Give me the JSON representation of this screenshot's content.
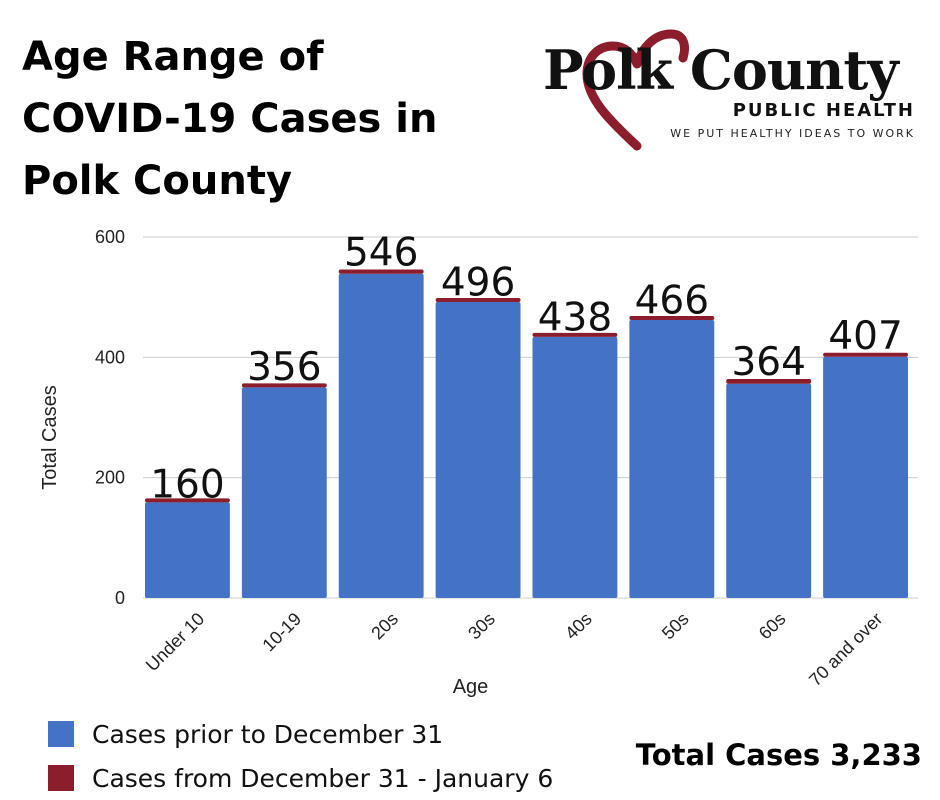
{
  "header": {
    "title_lines": [
      "Age Range of",
      "COVID-19 Cases in",
      "Polk County"
    ]
  },
  "logo": {
    "name": "Polk County",
    "subtitle": "PUBLIC HEALTH",
    "tagline": "WE PUT HEALTHY IDEAS TO WORK",
    "heart_color": "#8b1d2c"
  },
  "chart_data": {
    "type": "bar",
    "stacked": true,
    "title": "",
    "xlabel": "Age",
    "ylabel": "Total Cases",
    "ylim": [
      0,
      600
    ],
    "yticks": [
      0,
      200,
      400,
      600
    ],
    "grid": true,
    "categories": [
      "Under 10",
      "10-19",
      "20s",
      "30s",
      "40s",
      "50s",
      "60s",
      "70 and over"
    ],
    "series": [
      {
        "name": "Cases prior to December 31",
        "color": "#4472c4",
        "values": [
          159,
          350,
          539,
          492,
          434,
          462,
          356,
          401
        ]
      },
      {
        "name": "Cases from December 31 - January 6",
        "color": "#8b1d2c",
        "values": [
          1,
          6,
          7,
          4,
          4,
          4,
          8,
          6
        ]
      }
    ],
    "totals": [
      "160",
      "356",
      "546",
      "496",
      "438",
      "466",
      "364",
      "407"
    ]
  },
  "footer": {
    "total_text": "Total Cases 3,233"
  }
}
